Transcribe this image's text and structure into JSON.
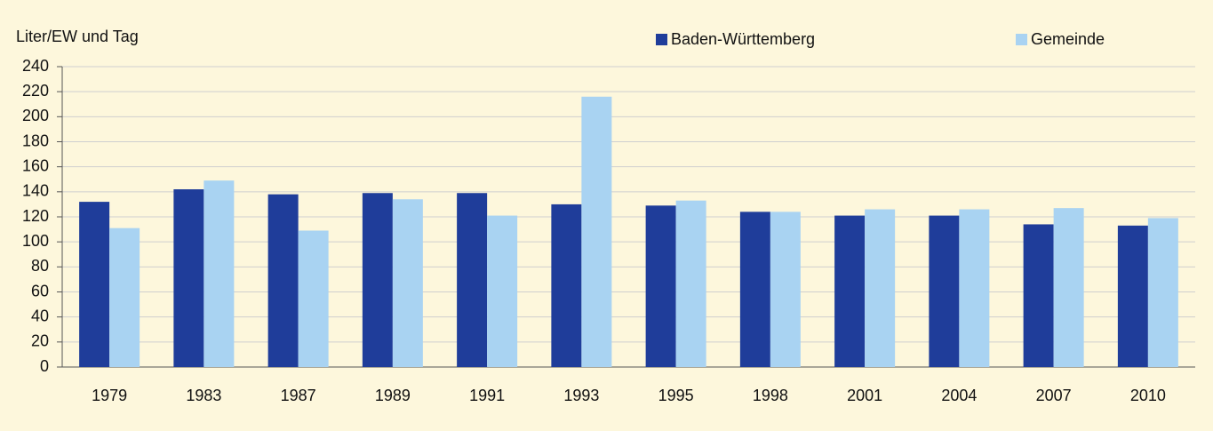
{
  "chart_data": {
    "type": "bar",
    "y_label": "Liter/EW und Tag",
    "categories": [
      "1979",
      "1983",
      "1987",
      "1989",
      "1991",
      "1993",
      "1995",
      "1998",
      "2001",
      "2004",
      "2007",
      "2010"
    ],
    "series": [
      {
        "name": "Baden-Württemberg",
        "color": "#1f3d9a",
        "values": [
          132,
          142,
          138,
          139,
          139,
          130,
          129,
          124,
          121,
          121,
          114,
          113
        ]
      },
      {
        "name": "Gemeinde",
        "color": "#a9d3f2",
        "values": [
          111,
          149,
          109,
          134,
          121,
          216,
          133,
          124,
          126,
          126,
          127,
          119
        ]
      }
    ],
    "ylim": [
      0,
      240
    ],
    "yticks": [
      0,
      20,
      40,
      60,
      80,
      100,
      120,
      140,
      160,
      180,
      200,
      220,
      240
    ],
    "grid": true
  }
}
